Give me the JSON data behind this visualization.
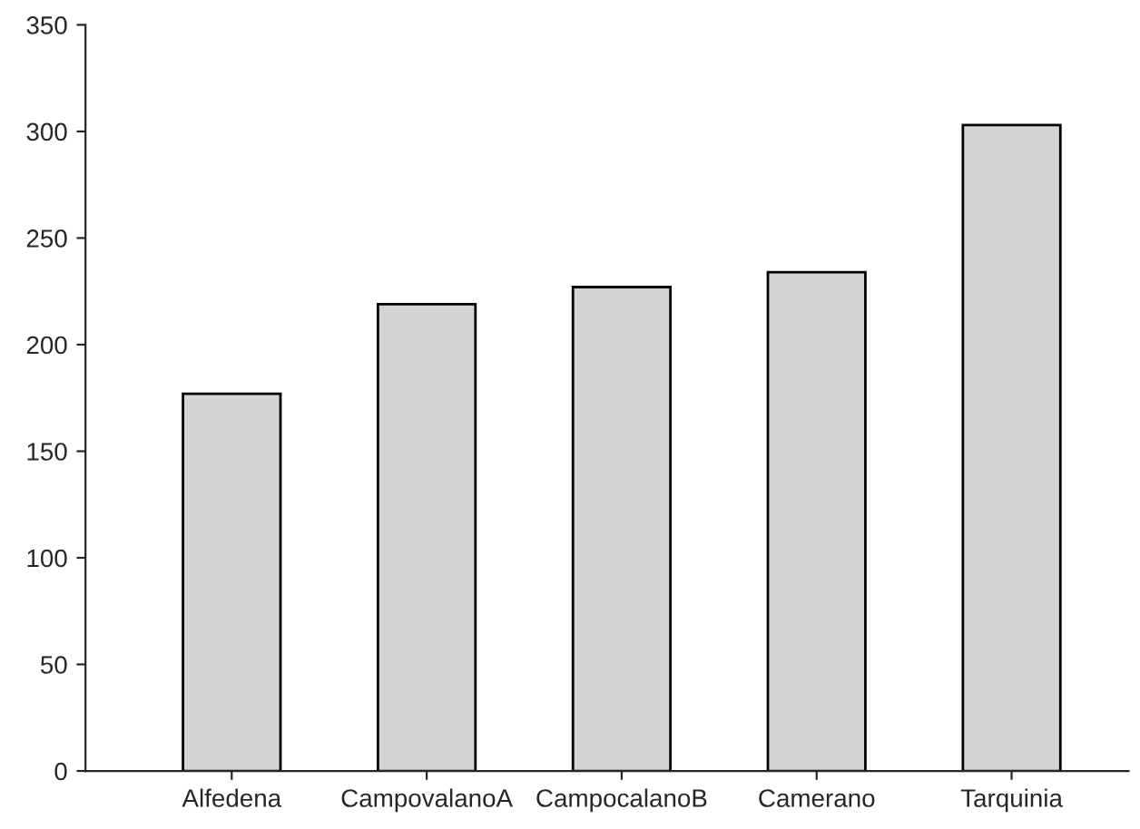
{
  "chart_data": {
    "type": "bar",
    "categories": [
      "Alfedena",
      "CampovalanoA",
      "CampocalanoB",
      "Camerano",
      "Tarquinia"
    ],
    "values": [
      177,
      219,
      227,
      234,
      303
    ],
    "color": "#d4d4d4",
    "ylim": [
      0,
      350
    ],
    "yticks": [
      0,
      50,
      100,
      150,
      200,
      250,
      300,
      350
    ],
    "grid": false
  }
}
